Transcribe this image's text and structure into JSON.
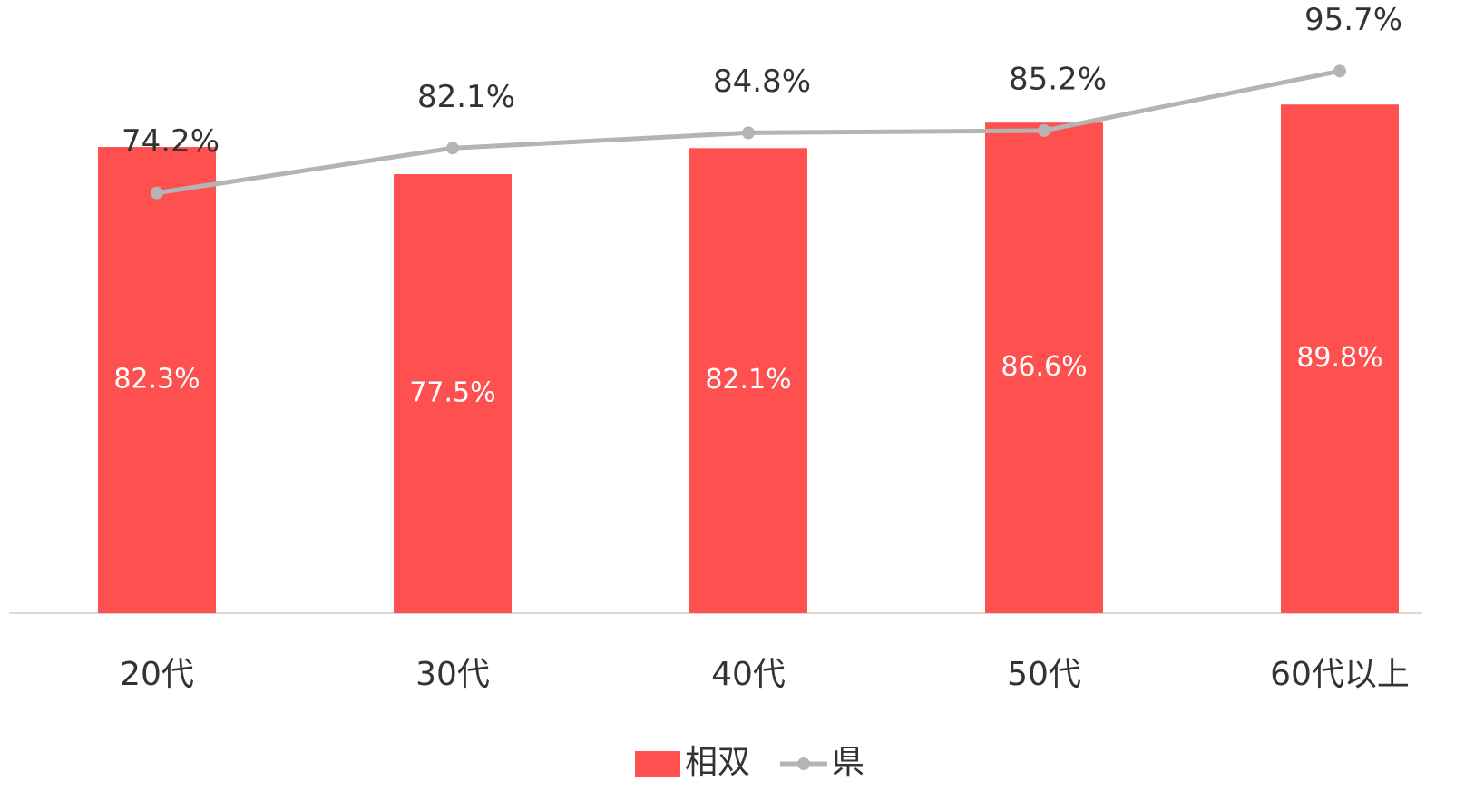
{
  "chart_data": {
    "type": "bar",
    "categories": [
      "20代",
      "30代",
      "40代",
      "50代",
      "60代以上"
    ],
    "series": [
      {
        "name": "相双",
        "type": "bar",
        "color": "#ff5050",
        "values": [
          82.3,
          77.5,
          82.1,
          86.6,
          89.8
        ],
        "value_labels": [
          "82.3%",
          "77.5%",
          "82.1%",
          "86.6%",
          "89.8%"
        ]
      },
      {
        "name": "県",
        "type": "line",
        "color": "#b4b4b4",
        "values": [
          74.2,
          82.1,
          84.8,
          85.2,
          95.7
        ],
        "value_labels": [
          "74.2%",
          "82.1%",
          "84.8%",
          "85.2%",
          "95.7%"
        ]
      }
    ],
    "ylim": [
      0,
      100
    ],
    "legend": "bottom"
  }
}
